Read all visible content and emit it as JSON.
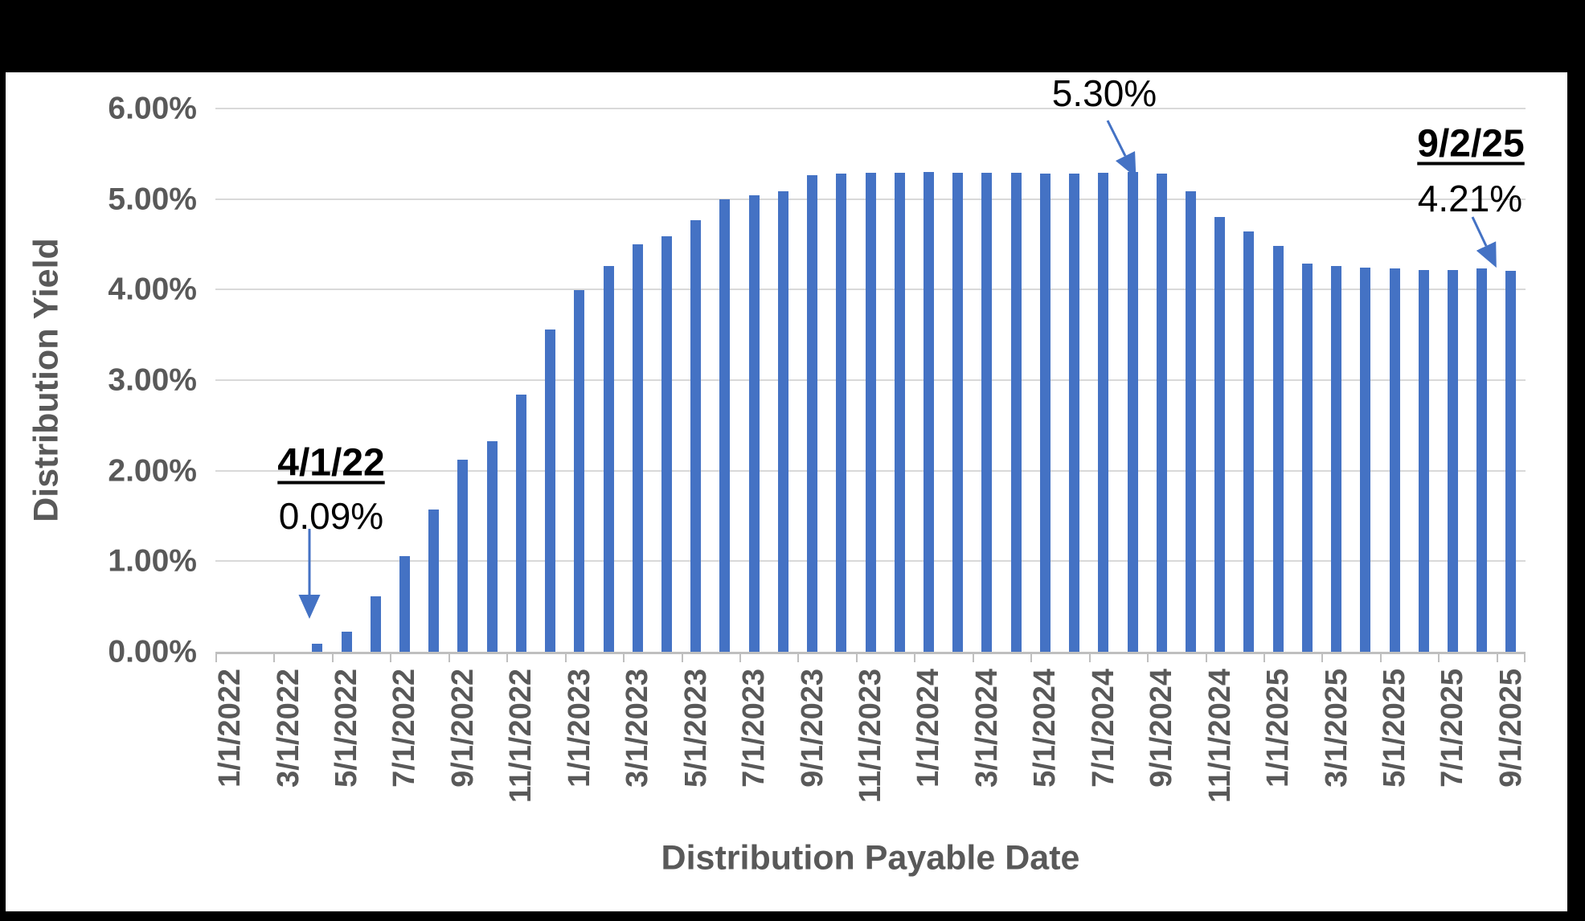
{
  "colors": {
    "bar": "#4472C4",
    "arrow": "#4472C4",
    "grid": "#D9D9D9",
    "axis_line": "#BFBFBF",
    "tick_label": "#595959",
    "annotation_text": "#000000",
    "chart_background": "#FFFFFF",
    "frame": "#000000"
  },
  "y_axis": {
    "title": "Distribution Yield",
    "tick_labels": [
      "6.00%",
      "5.00%",
      "4.00%",
      "3.00%",
      "2.00%",
      "1.00%",
      "0.00%"
    ]
  },
  "x_axis": {
    "title": "Distribution Payable Date",
    "tick_labels": [
      "1/1/2022",
      "3/1/2022",
      "5/1/2022",
      "7/1/2022",
      "9/1/2022",
      "11/1/2022",
      "1/1/2023",
      "3/1/2023",
      "5/1/2023",
      "7/1/2023",
      "9/1/2023",
      "11/1/2023",
      "1/1/2024",
      "3/1/2024",
      "5/1/2024",
      "7/1/2024",
      "9/1/2024",
      "11/1/2024",
      "1/1/2025",
      "3/1/2025",
      "5/1/2025",
      "7/1/2025",
      "9/1/2025"
    ]
  },
  "annotations": {
    "start_date": "4/1/22",
    "start_value": "0.09%",
    "peak_value": "5.30%",
    "end_date": "9/2/25",
    "end_value": "4.21%"
  },
  "chart_data": {
    "type": "bar",
    "title": "",
    "xlabel": "Distribution Payable Date",
    "ylabel": "Distribution Yield",
    "ylim": [
      0,
      6
    ],
    "grid": true,
    "legend": false,
    "categories": [
      "1/1/2022",
      "2/1/2022",
      "3/1/2022",
      "4/1/2022",
      "5/1/2022",
      "6/1/2022",
      "7/1/2022",
      "8/1/2022",
      "9/1/2022",
      "10/1/2022",
      "11/1/2022",
      "12/1/2022",
      "1/1/2023",
      "2/1/2023",
      "3/1/2023",
      "4/1/2023",
      "5/1/2023",
      "6/1/2023",
      "7/1/2023",
      "8/1/2023",
      "9/1/2023",
      "10/1/2023",
      "11/1/2023",
      "12/1/2023",
      "1/1/2024",
      "2/1/2024",
      "3/1/2024",
      "4/1/2024",
      "5/1/2024",
      "6/1/2024",
      "7/1/2024",
      "8/1/2024",
      "9/1/2024",
      "10/1/2024",
      "11/1/2024",
      "12/1/2024",
      "1/1/2025",
      "2/1/2025",
      "3/1/2025",
      "4/1/2025",
      "5/1/2025",
      "6/1/2025",
      "7/1/2025",
      "8/1/2025",
      "9/1/2025"
    ],
    "values": [
      0,
      0,
      0,
      0.09,
      0.22,
      0.61,
      1.06,
      1.57,
      2.12,
      2.33,
      2.84,
      3.56,
      3.99,
      4.26,
      4.5,
      4.59,
      4.77,
      5.0,
      5.04,
      5.09,
      5.26,
      5.28,
      5.29,
      5.29,
      5.3,
      5.29,
      5.29,
      5.29,
      5.28,
      5.28,
      5.29,
      5.3,
      5.28,
      5.09,
      4.8,
      4.64,
      4.48,
      4.29,
      4.26,
      4.24,
      4.23,
      4.22,
      4.22,
      4.23,
      4.21
    ],
    "point_annotations": [
      {
        "target": "4/1/2022",
        "label": "4/1/22",
        "text": "0.09%"
      },
      {
        "target": "8/1/2024",
        "label": "",
        "text": "5.30%"
      },
      {
        "target": "9/1/2025",
        "label": "9/2/25",
        "text": "4.21%"
      }
    ]
  }
}
